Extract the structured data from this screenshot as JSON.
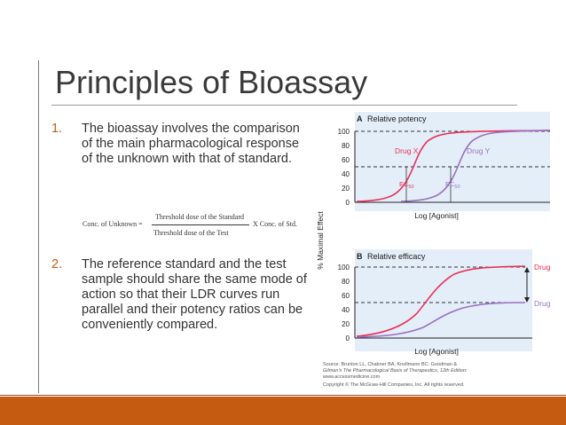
{
  "slide": {
    "title": "Principles  of Bioassay",
    "items": [
      {
        "number": "1.",
        "text": "The bioassay involves the comparison of  the main pharmacological response of the unknown with that of standard."
      },
      {
        "number": "2.",
        "text": "The reference standard and the test sample should share the same mode of action  so that their LDR curves run parallel and their potency ratios can be conveniently compared."
      }
    ],
    "formula": {
      "lhs": "Conc. of Unknown =",
      "numerator": "Threshold dose of the Standard",
      "denominator": "Threshold dose of the Test",
      "rhs": "X Conc. of Std."
    }
  },
  "figure": {
    "y_axis_label": "% Maximal Effect",
    "panel_a": {
      "letter": "A",
      "title": "Relative potency",
      "x_label": "Log [Agonist]",
      "drug_x": "Drug X",
      "drug_y": "Drug Y",
      "ec_x": "EC",
      "ec_y": "EC",
      "ec_sub": "50",
      "ticks": [
        "100",
        "80",
        "60",
        "40",
        "20",
        "0"
      ]
    },
    "panel_b": {
      "letter": "B",
      "title": "Relative efficacy",
      "x_label": "Log [Agonist]",
      "drug_x": "Drug X",
      "drug_y": "Drug Y",
      "ticks": [
        "100",
        "80",
        "60",
        "40",
        "20",
        "0"
      ]
    },
    "source_lines": [
      "Source: Brunton LL, Chabner BA, Knollmann BC: Goodman &",
      "Gilman's The Pharmacological Basis of Therapeutics, 12th Edition:",
      "www.accessmedicine.com",
      "Copyright © The McGraw-Hill Companies, Inc. All rights reserved."
    ],
    "colors": {
      "drug_x": "#e8335a",
      "drug_y": "#9a6fc2",
      "panel_bg": "#e4eef8",
      "label": "#e8335a"
    }
  }
}
